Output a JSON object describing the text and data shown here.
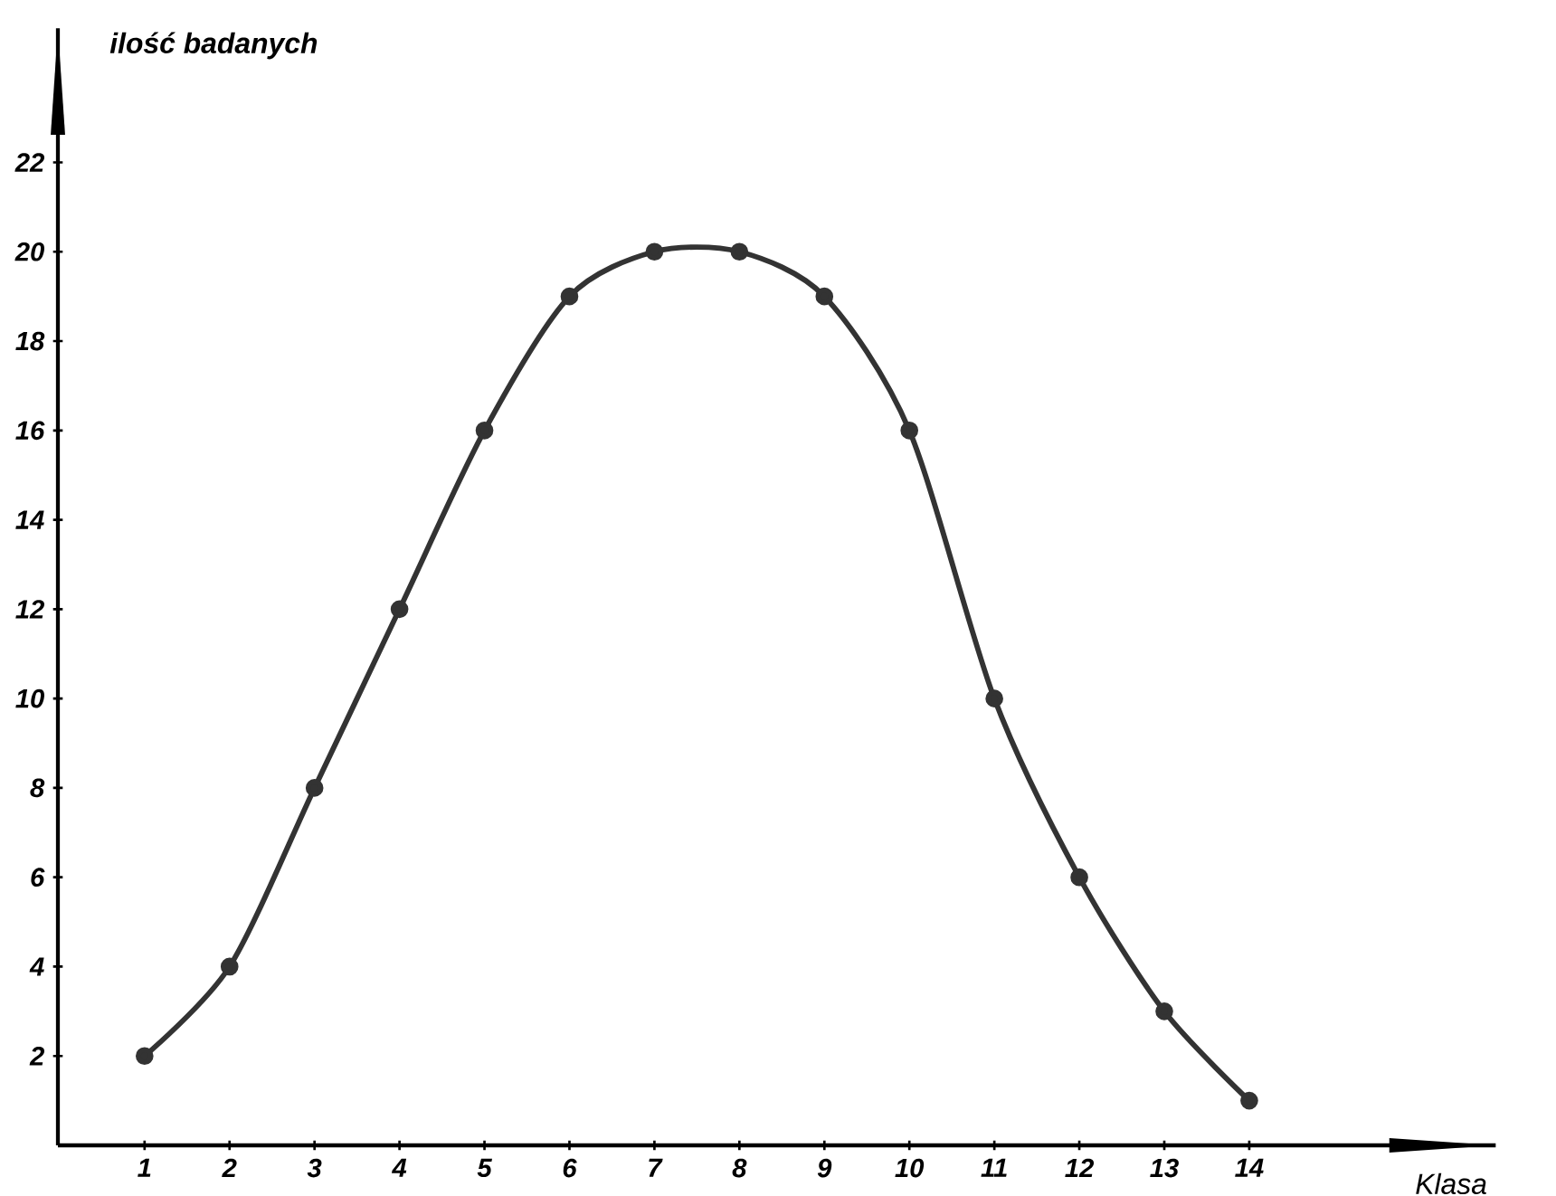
{
  "chart_data": {
    "type": "line",
    "xlabel": "Klasa",
    "ylabel": "ilość badanych",
    "categories": [
      "1",
      "2",
      "3",
      "4",
      "5",
      "6",
      "7",
      "8",
      "9",
      "10",
      "11",
      "12",
      "13",
      "14"
    ],
    "series": [
      {
        "color": "#333333",
        "values": [
          2,
          4,
          8,
          12,
          16,
          19,
          20,
          20,
          19,
          16,
          10,
          6,
          3,
          1
        ]
      }
    ],
    "ylim": [
      0,
      25
    ],
    "yticks": [
      2,
      4,
      6,
      8,
      10,
      12,
      14,
      16,
      18,
      20,
      22
    ],
    "grid": false,
    "marker": "circle",
    "line_style": "solid"
  }
}
